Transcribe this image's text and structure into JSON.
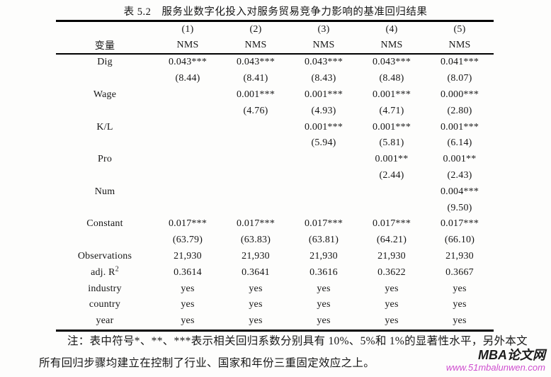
{
  "page": {
    "title": "表 5.2　服务业数字化投入对服务贸易竞争力影响的基准回归结果"
  },
  "table": {
    "col_numbers": [
      "(1)",
      "(2)",
      "(3)",
      "(4)",
      "(5)"
    ],
    "var_header": "变量",
    "dep_var": [
      "NMS",
      "NMS",
      "NMS",
      "NMS",
      "NMS"
    ],
    "rows": [
      {
        "label": "Dig",
        "cells": [
          "0.043***",
          "0.043***",
          "0.043***",
          "0.043***",
          "0.041***"
        ]
      },
      {
        "label": "",
        "cells": [
          "(8.44)",
          "(8.41)",
          "(8.43)",
          "(8.48)",
          "(8.07)"
        ]
      },
      {
        "label": "Wage",
        "cells": [
          "",
          "0.001***",
          "0.001***",
          "0.001***",
          "0.000***"
        ]
      },
      {
        "label": "",
        "cells": [
          "",
          "(4.76)",
          "(4.93)",
          "(4.71)",
          "(2.80)"
        ]
      },
      {
        "label": "K/L",
        "cells": [
          "",
          "",
          "0.001***",
          "0.001***",
          "0.001***"
        ]
      },
      {
        "label": "",
        "cells": [
          "",
          "",
          "(5.94)",
          "(5.81)",
          "(6.14)"
        ]
      },
      {
        "label": "Pro",
        "cells": [
          "",
          "",
          "",
          "0.001**",
          "0.001**"
        ]
      },
      {
        "label": "",
        "cells": [
          "",
          "",
          "",
          "(2.44)",
          "(2.43)"
        ]
      },
      {
        "label": "Num",
        "cells": [
          "",
          "",
          "",
          "",
          "0.004***"
        ]
      },
      {
        "label": "",
        "cells": [
          "",
          "",
          "",
          "",
          "(9.50)"
        ]
      },
      {
        "label": "Constant",
        "cells": [
          "0.017***",
          "0.017***",
          "0.017***",
          "0.017***",
          "0.017***"
        ]
      },
      {
        "label": "",
        "cells": [
          "(63.79)",
          "(63.83)",
          "(63.81)",
          "(64.21)",
          "(66.10)"
        ]
      },
      {
        "label": "Observations",
        "cells": [
          "21,930",
          "21,930",
          "21,930",
          "21,930",
          "21,930"
        ]
      },
      {
        "label": "adj. R",
        "label_sup": "2",
        "cells": [
          "0.3614",
          "0.3641",
          "0.3616",
          "0.3622",
          "0.3667"
        ]
      },
      {
        "label": "industry",
        "cells": [
          "yes",
          "yes",
          "yes",
          "yes",
          "yes"
        ]
      },
      {
        "label": "country",
        "cells": [
          "yes",
          "yes",
          "yes",
          "yes",
          "yes"
        ]
      },
      {
        "label": "year",
        "cells": [
          "yes",
          "yes",
          "yes",
          "yes",
          "yes"
        ]
      }
    ]
  },
  "notes": {
    "line1": "注：表中符号*、**、***表示相关回归系数分别具有 10%、5%和 1%的显著性水平，另外本文",
    "line2": "所有回归步骤均建立在控制了行业、国家和年份三重固定效应之上。"
  },
  "watermark": {
    "name": "MBA论文网",
    "url": "www.51mbalunwen.com",
    "name_color": "#1c1c1c",
    "url_color": "#cf4ecf"
  }
}
